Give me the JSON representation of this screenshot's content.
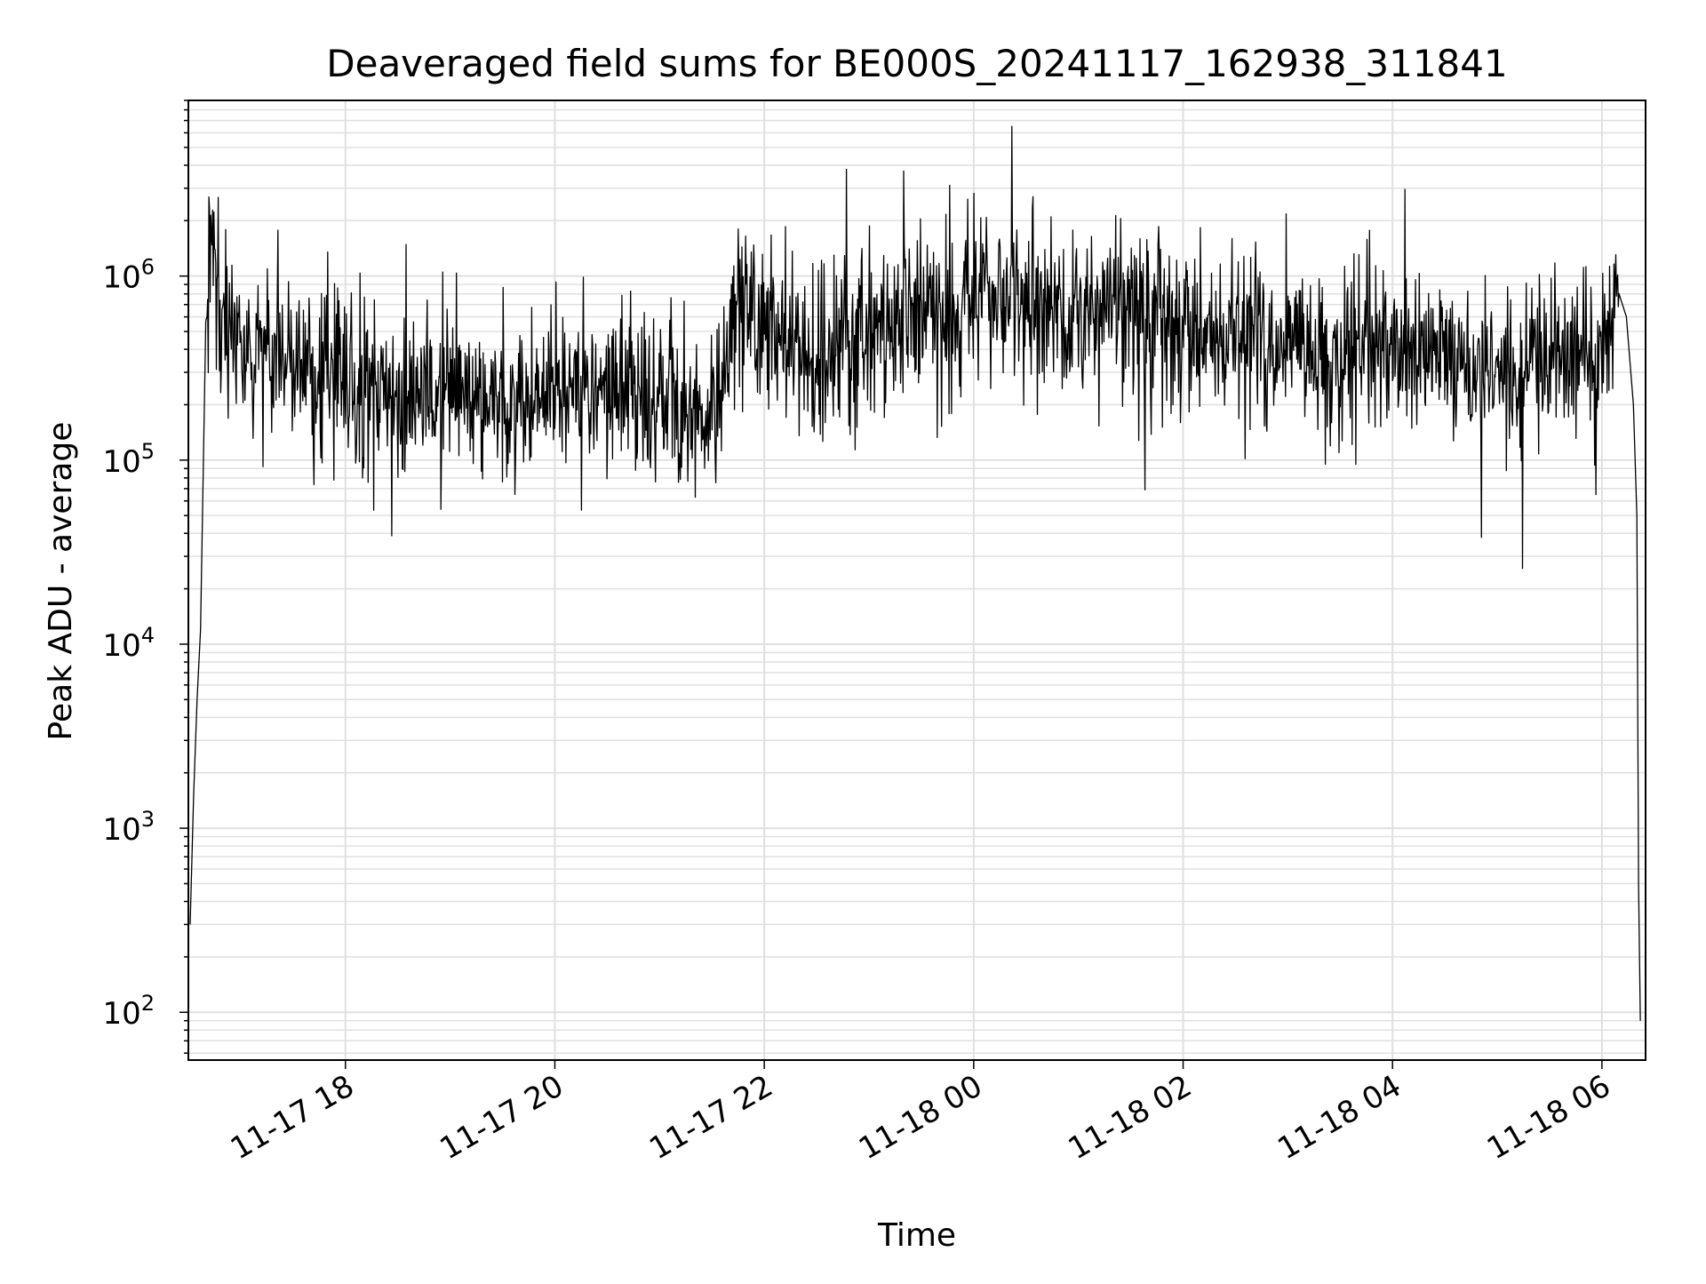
{
  "chart_data": {
    "type": "line",
    "title": "Deaveraged field sums for BE000S_20241117_162938_311841",
    "xlabel": "Time",
    "ylabel": "Peak ADU - average",
    "yscale": "log",
    "ylim": [
      55,
      9000000
    ],
    "xlim": [
      "2024-11-17 16:30",
      "2024-11-18 06:25"
    ],
    "grid": true,
    "legend": "none",
    "line_color": "#000000",
    "x_ticks": [
      "2024-11-17 18:00",
      "2024-11-17 20:00",
      "2024-11-17 22:00",
      "2024-11-18 00:00",
      "2024-11-18 02:00",
      "2024-11-18 04:00",
      "2024-11-18 06:00"
    ],
    "x_tick_labels": [
      "11-17 18",
      "11-17 20",
      "11-17 22",
      "11-18 00",
      "11-18 02",
      "11-18 04",
      "11-18 06"
    ],
    "y_tick_values": [
      100,
      1000,
      10000,
      100000,
      1000000
    ],
    "y_tick_labels": [
      {
        "base": "10",
        "exp": "2"
      },
      {
        "base": "10",
        "exp": "3"
      },
      {
        "base": "10",
        "exp": "4"
      },
      {
        "base": "10",
        "exp": "5"
      },
      {
        "base": "10",
        "exp": "6"
      }
    ],
    "series": [
      {
        "x": [
          "2024-11-17 16:31",
          "2024-11-17 16:33",
          "2024-11-17 16:35",
          "2024-11-17 16:37",
          "2024-11-17 16:40",
          "2024-11-17 16:43",
          "2024-11-17 16:47",
          "2024-11-17 16:52",
          "2024-11-17 17:00",
          "2024-11-17 17:10",
          "2024-11-17 17:30",
          "2024-11-17 18:00",
          "2024-11-17 18:30",
          "2024-11-17 19:00",
          "2024-11-17 19:30",
          "2024-11-17 20:00",
          "2024-11-17 20:30",
          "2024-11-17 21:00",
          "2024-11-17 21:15",
          "2024-11-17 21:30",
          "2024-11-17 21:45",
          "2024-11-17 22:00",
          "2024-11-17 22:30",
          "2024-11-17 23:00",
          "2024-11-17 23:30",
          "2024-11-18 00:00",
          "2024-11-18 00:30",
          "2024-11-18 01:00",
          "2024-11-18 01:30",
          "2024-11-18 02:00",
          "2024-11-18 02:30",
          "2024-11-18 03:00",
          "2024-11-18 03:30",
          "2024-11-18 04:00",
          "2024-11-18 04:30",
          "2024-11-18 05:00",
          "2024-11-18 05:30",
          "2024-11-18 06:00",
          "2024-11-18 06:05",
          "2024-11-18 06:10",
          "2024-11-18 06:14",
          "2024-11-18 06:18",
          "2024-11-18 06:20",
          "2024-11-18 06:21",
          "2024-11-18 06:22"
        ],
        "y": [
          300,
          1500,
          5000,
          12000,
          500000,
          1600000,
          800000,
          600000,
          500000,
          450000,
          350000,
          250000,
          220000,
          230000,
          220000,
          230000,
          250000,
          220000,
          180000,
          150000,
          800000,
          550000,
          350000,
          500000,
          600000,
          700000,
          750000,
          650000,
          600000,
          500000,
          480000,
          450000,
          420000,
          400000,
          350000,
          300000,
          320000,
          350000,
          600000,
          900000,
          600000,
          200000,
          50000,
          500,
          90
        ]
      }
    ]
  }
}
